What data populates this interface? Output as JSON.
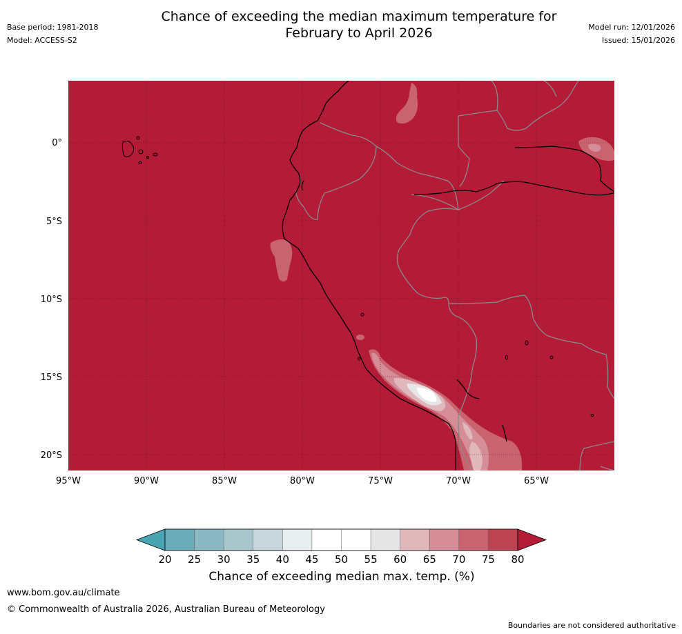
{
  "title": {
    "line1": "Chance of exceeding the median maximum temperature for",
    "line2": "February to April 2026"
  },
  "meta_left": {
    "base_period": "Base period: 1981-2018",
    "model": "Model: ACCESS-S2"
  },
  "meta_right": {
    "model_run": "Model run: 12/01/2026",
    "issued": "Issued: 15/01/2026"
  },
  "colorbar": {
    "label": "Chance of exceeding median max. temp. (%)",
    "ticks": [
      "20",
      "25",
      "30",
      "35",
      "40",
      "45",
      "50",
      "55",
      "60",
      "65",
      "70",
      "75",
      "80"
    ],
    "under_color": "#48a4b0",
    "over_color": "#b31b37",
    "bins": [
      {
        "range": "20-25",
        "color": "#6bacb9"
      },
      {
        "range": "25-30",
        "color": "#8ab9c4"
      },
      {
        "range": "30-35",
        "color": "#a8c6cc"
      },
      {
        "range": "35-40",
        "color": "#c7d6db"
      },
      {
        "range": "40-45",
        "color": "#e8eef0"
      },
      {
        "range": "45-50",
        "color": "#ffffff"
      },
      {
        "range": "50-55",
        "color": "#ffffff"
      },
      {
        "range": "55-60",
        "color": "#e6e6e6"
      },
      {
        "range": "60-65",
        "color": "#e0b8bc"
      },
      {
        "range": "65-70",
        "color": "#d58e97"
      },
      {
        "range": "70-75",
        "color": "#c9636f"
      },
      {
        "range": "75-80",
        "color": "#bc4452"
      }
    ]
  },
  "map": {
    "background_color": "#b31b37",
    "lat_labels": [
      "0°",
      "5°S",
      "10°S",
      "15°S",
      "20°S"
    ],
    "lon_labels": [
      "95°W",
      "90°W",
      "85°W",
      "80°W",
      "75°W",
      "70°W",
      "65°W"
    ]
  },
  "footer": {
    "url": "www.bom.gov.au/climate",
    "copyright": "© Commonwealth of Australia 2026, Australian Bureau of Meteorology",
    "note": "Boundaries are not considered authoritative"
  }
}
